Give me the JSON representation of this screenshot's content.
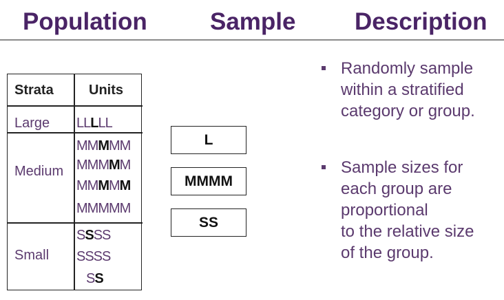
{
  "headers": {
    "population": "Population",
    "sample": "Sample",
    "description": "Description"
  },
  "table": {
    "col_strata": "Strata",
    "col_units": "Units",
    "rows": [
      {
        "stratum": "Large",
        "lines": [
          {
            "pre": "LL",
            "bold": "L",
            "post": "LL"
          }
        ]
      },
      {
        "stratum": "Medium",
        "lines": [
          {
            "pre": "MM",
            "bold": "M",
            "post": "MM"
          },
          {
            "pre": "MMM",
            "bold": "M",
            "post": "M"
          },
          {
            "pre": "MM",
            "bold": "M",
            "post": "M",
            "bold2": "M"
          },
          {
            "pre": "MMMMM",
            "bold": "",
            "post": ""
          }
        ]
      },
      {
        "stratum": "Small",
        "lines": [
          {
            "pre": "S",
            "bold": "S",
            "post": "SS"
          },
          {
            "pre": "SSSS",
            "bold": "",
            "post": ""
          },
          {
            "pre": "S",
            "bold": "S",
            "post": ""
          }
        ]
      }
    ]
  },
  "samples": [
    "L",
    "MMMM",
    "SS"
  ],
  "bullets": [
    "Randomly sample within a stratified category or group.",
    "Sample sizes for each group are proportional to the relative size of the group."
  ],
  "bullet_lines": [
    [
      "Randomly sample",
      "within a stratified",
      "category or group."
    ],
    [
      "Sample sizes for",
      "each group are",
      "proportional",
      "to the relative size",
      "of the group."
    ]
  ],
  "colors": {
    "title": "#4a2466",
    "text": "#5b3a6e",
    "lines": "#222222"
  }
}
